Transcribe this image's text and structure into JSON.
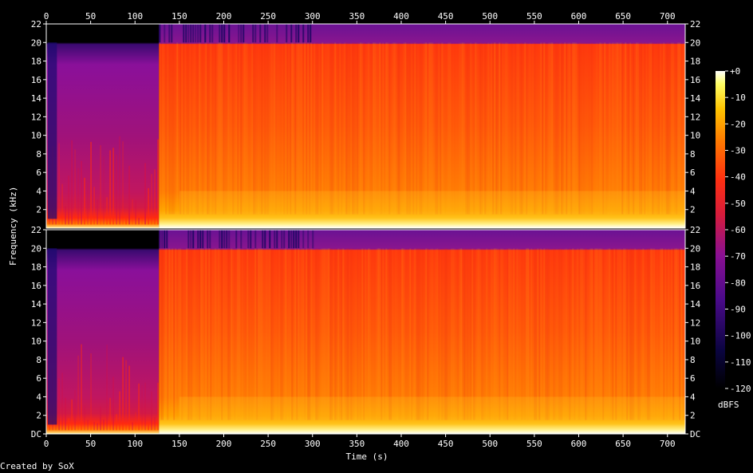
{
  "chart_data": {
    "type": "heatmap",
    "title": "",
    "xlabel": "Time (s)",
    "ylabel": "Frequency (kHz)",
    "channels": 2,
    "x_ticks": [
      0,
      50,
      100,
      150,
      200,
      250,
      300,
      350,
      400,
      450,
      500,
      550,
      600,
      650,
      700
    ],
    "xlim": [
      0,
      720
    ],
    "y_ticks": [
      "DC",
      "2",
      "4",
      "6",
      "8",
      "10",
      "12",
      "14",
      "16",
      "18",
      "20",
      "22"
    ],
    "ylim_khz": [
      0,
      22
    ],
    "colorbar": {
      "label": "dBFS",
      "ticks": [
        "+0",
        "-10",
        "-20",
        "-30",
        "-40",
        "-50",
        "-60",
        "-70",
        "-80",
        "-90",
        "-100",
        "-110",
        "-120"
      ],
      "range_db": [
        -120,
        0
      ]
    },
    "regions": [
      {
        "time_range_s": [
          0,
          127
        ],
        "cutoff_khz": 20,
        "above_cutoff_db": -120,
        "body_db": -75,
        "low_freq_db": -35
      },
      {
        "time_range_s": [
          127,
          720
        ],
        "cutoff_khz": 20,
        "above_cutoff_db": -80,
        "body_db": -50,
        "low_freq_db": -20
      }
    ],
    "grid": false
  },
  "footer": {
    "credit": "Created by SoX"
  },
  "colors": {
    "background": "#000000",
    "axis": "#ffffff",
    "text": "#ffffff"
  }
}
